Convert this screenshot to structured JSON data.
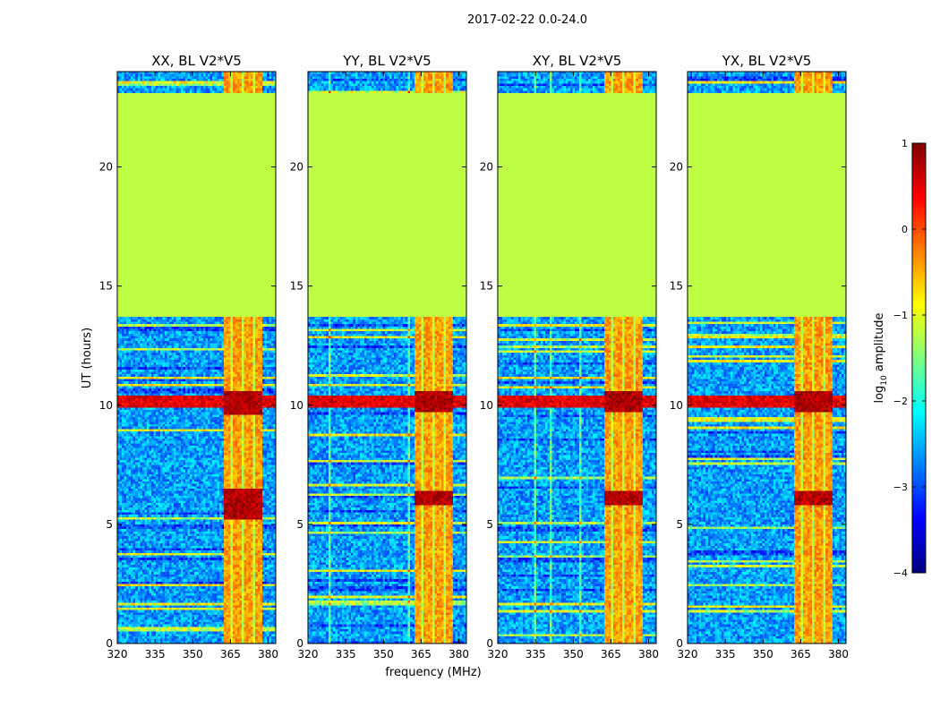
{
  "figure": {
    "suptitle": "2017-02-22 0.0-24.0",
    "ylabel": "UT (hours)",
    "xlabel": "frequency (MHz)"
  },
  "colorbar": {
    "label_prefix": "log",
    "label_sub": "10",
    "label_suffix": " amplitude",
    "range": [
      -4,
      1
    ],
    "ticks": [
      -4,
      -3,
      -2,
      -1,
      0,
      1
    ],
    "tick_labels": [
      "−4",
      "−3",
      "−2",
      "−1",
      "0",
      "1"
    ],
    "colormap": "jet"
  },
  "chart_data": [
    {
      "type": "heatmap",
      "title": "XX, BL V2*V5",
      "xlabel": "",
      "ylabel": "UT (hours)",
      "xlim": [
        320,
        383
      ],
      "ylim": [
        0,
        24
      ],
      "xticks": [
        320,
        335,
        350,
        365,
        380
      ],
      "yticks": [
        0,
        5,
        10,
        15,
        20
      ],
      "flagged_hours": [
        13.7,
        23.1
      ],
      "flagged_value": -1.2,
      "rfi_band_mhz": [
        362,
        378
      ],
      "intense_hours": [
        [
          5.2,
          6.5
        ],
        [
          9.6,
          10.6
        ]
      ]
    },
    {
      "type": "heatmap",
      "title": "YY, BL V2*V5",
      "xlabel": "",
      "ylabel": "",
      "xlim": [
        320,
        383
      ],
      "ylim": [
        0,
        24
      ],
      "xticks": [
        320,
        335,
        350,
        365,
        380
      ],
      "yticks": [
        0,
        5,
        10,
        15,
        20
      ],
      "flagged_hours": [
        13.7,
        23.1
      ],
      "flagged_value": -1.2,
      "rfi_band_mhz": [
        362,
        378
      ],
      "intense_hours": [
        [
          5.8,
          6.4
        ],
        [
          9.7,
          10.6
        ]
      ]
    },
    {
      "type": "heatmap",
      "title": "XY, BL V2*V5",
      "xlabel": "",
      "ylabel": "",
      "xlim": [
        320,
        383
      ],
      "ylim": [
        0,
        24
      ],
      "xticks": [
        320,
        335,
        350,
        365,
        380
      ],
      "yticks": [
        0,
        5,
        10,
        15,
        20
      ],
      "flagged_hours": [
        13.7,
        23.1
      ],
      "flagged_value": -1.2,
      "rfi_band_mhz": [
        362,
        378
      ],
      "intense_hours": [
        [
          5.8,
          6.4
        ],
        [
          9.7,
          10.6
        ]
      ]
    },
    {
      "type": "heatmap",
      "title": "YX, BL V2*V5",
      "xlabel": "",
      "ylabel": "",
      "xlim": [
        320,
        383
      ],
      "ylim": [
        0,
        24
      ],
      "xticks": [
        320,
        335,
        350,
        365,
        380
      ],
      "yticks": [
        0,
        5,
        10,
        15,
        20
      ],
      "flagged_hours": [
        13.7,
        23.1
      ],
      "flagged_value": -1.2,
      "rfi_band_mhz": [
        362,
        378
      ],
      "intense_hours": [
        [
          5.8,
          6.4
        ],
        [
          9.7,
          10.6
        ]
      ]
    }
  ]
}
